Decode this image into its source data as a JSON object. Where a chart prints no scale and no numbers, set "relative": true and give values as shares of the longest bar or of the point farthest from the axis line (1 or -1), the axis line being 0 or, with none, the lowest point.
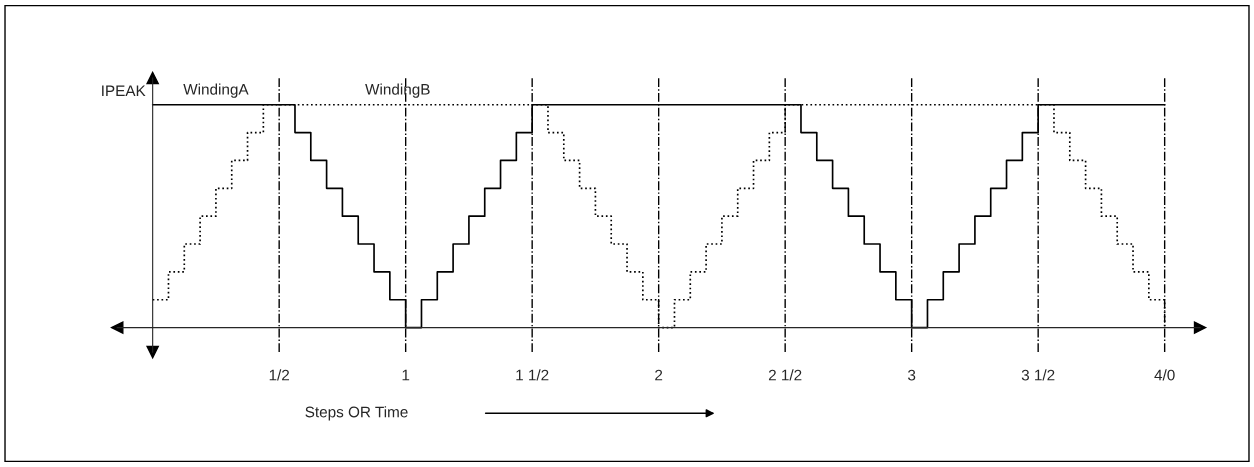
{
  "chart_data": {
    "type": "step",
    "relative": true,
    "xlabel": "Steps OR Time",
    "annotations": [
      "IPEAK"
    ],
    "x": [
      0,
      0.0625,
      0.125,
      0.1875,
      0.25,
      0.3125,
      0.375,
      0.4375,
      0.5,
      0.5625,
      0.625,
      0.6875,
      0.75,
      0.8125,
      0.875,
      0.9375,
      1,
      1.0625,
      1.125,
      1.1875,
      1.25,
      1.3125,
      1.375,
      1.4375,
      1.5,
      1.5625,
      1.625,
      1.6875,
      1.75,
      1.8125,
      1.875,
      1.9375,
      2,
      2.0625,
      2.125,
      2.1875,
      2.25,
      2.3125,
      2.375,
      2.4375,
      2.5,
      2.5625,
      2.625,
      2.6875,
      2.75,
      2.8125,
      2.875,
      2.9375,
      3,
      3.0625,
      3.125,
      3.1875,
      3.25,
      3.3125,
      3.375,
      3.4375,
      3.5,
      3.5625,
      3.625,
      3.6875,
      3.75,
      3.8125,
      3.875,
      3.9375,
      4
    ],
    "xlim": [
      -0.14,
      4.14
    ],
    "xticks": [
      {
        "value": 0.5,
        "label": "1/2"
      },
      1,
      {
        "value": 1.5,
        "label": "1 1/2"
      },
      2,
      {
        "value": 2.5,
        "label": "2 1/2"
      },
      3,
      {
        "value": 3.5,
        "label": "3 1/2"
      },
      {
        "value": 4,
        "label": "4/0"
      }
    ],
    "ref_lines": [
      {
        "axis": "x",
        "value": 0.5,
        "line_style": "dashdot"
      },
      {
        "axis": "x",
        "value": 1,
        "line_style": "dashdot"
      },
      {
        "axis": "x",
        "value": 1.5,
        "line_style": "dashdot"
      },
      {
        "axis": "x",
        "value": 2,
        "line_style": "dashdot"
      },
      {
        "axis": "x",
        "value": 2.5,
        "line_style": "dashdot"
      },
      {
        "axis": "x",
        "value": 3,
        "line_style": "dashdot"
      },
      {
        "axis": "x",
        "value": 3.5,
        "line_style": "dashdot"
      },
      {
        "axis": "x",
        "value": 4,
        "line_style": "dashdot"
      }
    ],
    "series": [
      {
        "name": "WindingA",
        "color": "#000000",
        "line_style": "solid",
        "values": [
          1,
          1,
          1,
          1,
          1,
          1,
          1,
          1,
          1,
          0.875,
          0.75,
          0.625,
          0.5,
          0.375,
          0.25,
          0.125,
          0,
          0.125,
          0.25,
          0.375,
          0.5,
          0.625,
          0.75,
          0.875,
          1,
          1,
          1,
          1,
          1,
          1,
          1,
          1,
          1,
          1,
          1,
          1,
          1,
          1,
          1,
          1,
          1,
          0.875,
          0.75,
          0.625,
          0.5,
          0.375,
          0.25,
          0.125,
          0,
          0.125,
          0.25,
          0.375,
          0.5,
          0.625,
          0.75,
          0.875,
          1,
          1,
          1,
          1,
          1,
          1,
          1,
          1,
          1
        ]
      },
      {
        "name": "WindingB",
        "color": "#000000",
        "line_style": "dotted",
        "values": [
          0.125,
          0.25,
          0.375,
          0.5,
          0.625,
          0.75,
          0.875,
          1,
          1,
          1,
          1,
          1,
          1,
          1,
          1,
          1,
          1,
          1,
          1,
          1,
          1,
          1,
          1,
          1,
          1,
          0.875,
          0.75,
          0.625,
          0.5,
          0.375,
          0.25,
          0.125,
          0,
          0.125,
          0.25,
          0.375,
          0.5,
          0.625,
          0.75,
          0.875,
          1,
          1,
          1,
          1,
          1,
          1,
          1,
          1,
          1,
          1,
          1,
          1,
          1,
          1,
          1,
          1,
          1,
          0.875,
          0.75,
          0.625,
          0.5,
          0.375,
          0.25,
          0.125,
          0
        ]
      }
    ]
  }
}
